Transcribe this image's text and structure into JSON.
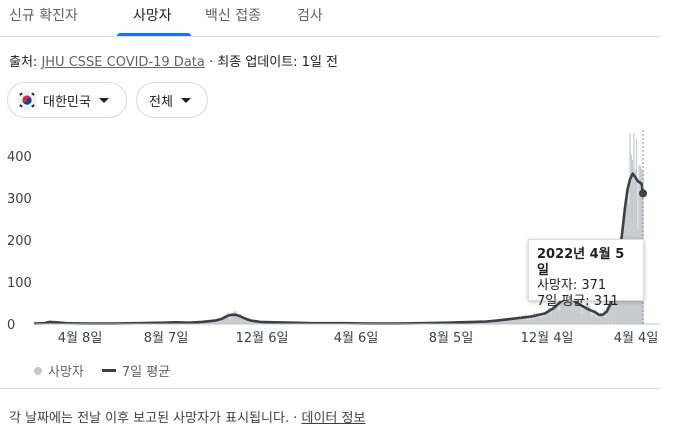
{
  "tabs": [
    {
      "label": "신규 확진자",
      "active": false
    },
    {
      "label": "사망자",
      "active": true
    },
    {
      "label": "백신 접종",
      "active": false
    },
    {
      "label": "검사",
      "active": false
    }
  ],
  "source": {
    "prefix": "출처: ",
    "link": "JHU CSSE COVID-19 Data",
    "separator": " · ",
    "updated": "최종 업데이트: 1일 전"
  },
  "filters": {
    "country": "대한민국",
    "range": "전체"
  },
  "tooltip": {
    "date": "2022년 4월 5일",
    "deaths": "사망자: 371",
    "avg": "7일 평균: 311"
  },
  "legend": {
    "series1": "사망자",
    "series2": "7일 평균"
  },
  "footer": {
    "note": "각 날짜에는 전날 이후 보고된 사망자가 표시됩니다.",
    "separator": " · ",
    "link": "데이터 정보"
  },
  "colors": {
    "bars": "#c7c9cc",
    "line": "#3c4043",
    "accent": "#1a73e8"
  },
  "chart_data": {
    "type": "area",
    "y_ticks": [
      "0",
      "100",
      "200",
      "300",
      "400"
    ],
    "x_ticks": [
      "4월 8일",
      "8월 7일",
      "12월 6일",
      "4월 6일",
      "8월 5일",
      "12월 4일",
      "4월 4일"
    ],
    "ylim": [
      0,
      450
    ],
    "series": [
      {
        "name": "7일 평균",
        "points": [
          [
            0,
            1
          ],
          [
            8,
            2
          ],
          [
            12,
            5
          ],
          [
            17,
            4
          ],
          [
            25,
            2
          ],
          [
            40,
            1
          ],
          [
            60,
            1
          ],
          [
            80,
            2
          ],
          [
            100,
            3
          ],
          [
            110,
            4
          ],
          [
            120,
            3
          ],
          [
            130,
            5
          ],
          [
            140,
            8
          ],
          [
            145,
            12
          ],
          [
            150,
            20
          ],
          [
            153,
            22
          ],
          [
            156,
            22
          ],
          [
            159,
            19
          ],
          [
            163,
            13
          ],
          [
            168,
            8
          ],
          [
            175,
            5
          ],
          [
            185,
            4
          ],
          [
            200,
            3
          ],
          [
            215,
            2
          ],
          [
            240,
            2
          ],
          [
            260,
            1
          ],
          [
            280,
            1
          ],
          [
            300,
            2
          ],
          [
            320,
            3
          ],
          [
            340,
            5
          ],
          [
            350,
            6
          ],
          [
            358,
            8
          ],
          [
            363,
            10
          ],
          [
            372,
            13
          ],
          [
            385,
            18
          ],
          [
            395,
            25
          ],
          [
            402,
            38
          ],
          [
            408,
            55
          ],
          [
            413,
            62
          ],
          [
            417,
            57
          ],
          [
            421,
            48
          ],
          [
            428,
            36
          ],
          [
            434,
            28
          ],
          [
            437,
            22
          ],
          [
            440,
            22
          ],
          [
            443,
            30
          ],
          [
            446,
            48
          ],
          [
            449,
            80
          ],
          [
            452,
            140
          ],
          [
            455,
            220
          ],
          [
            457,
            275
          ],
          [
            459,
            320
          ],
          [
            461,
            345
          ],
          [
            463,
            358
          ],
          [
            465,
            350
          ],
          [
            467,
            340
          ],
          [
            469,
            336
          ],
          [
            470,
            333
          ],
          [
            471,
            311
          ]
        ],
        "endpoint": [
          471,
          311
        ]
      }
    ],
    "tooltip_point": {
      "date": "2022년 4월 5일",
      "deaths": 371,
      "avg": 311
    }
  }
}
